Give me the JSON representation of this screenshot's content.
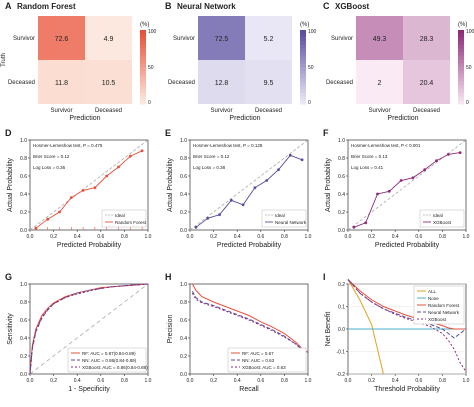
{
  "colors": {
    "rf": "#e8503a",
    "nn": "#5a4fa0",
    "xgb": "#8e2a7a",
    "ideal": "#aaaaaa",
    "all": "#e6a020",
    "none": "#49b0c8"
  },
  "chart_data": [
    {
      "panel": "A",
      "type": "heatmap",
      "title": "Random Forest",
      "xlabel": "Prediction",
      "ylabel": "Truth",
      "rows": [
        "Survivor",
        "Deceased"
      ],
      "cols": [
        "Survivor",
        "Deceased"
      ],
      "values": [
        [
          72.6,
          4.9
        ],
        [
          11.8,
          10.5
        ]
      ],
      "labels": [
        [
          "72.6",
          "4.9"
        ],
        [
          "11.8",
          "10.5"
        ]
      ],
      "colorbar": {
        "unit": "(%)",
        "ticks": [
          "100",
          "50",
          "0"
        ],
        "low": "#fdf0e6",
        "high": "#e8503a"
      }
    },
    {
      "panel": "B",
      "type": "heatmap",
      "title": "Neural Network",
      "xlabel": "Prediction",
      "ylabel": "",
      "rows": [
        "Survivor",
        "Deceased"
      ],
      "cols": [
        "Survivor",
        "Deceased"
      ],
      "values": [
        [
          72.5,
          5.2
        ],
        [
          12.8,
          9.5
        ]
      ],
      "labels": [
        [
          "72.5",
          "5.2"
        ],
        [
          "12.8",
          "9.5"
        ]
      ],
      "colorbar": {
        "unit": "(%)",
        "ticks": [
          "100",
          "50",
          "0"
        ],
        "low": "#f1effa",
        "high": "#5a4fa0"
      }
    },
    {
      "panel": "C",
      "type": "heatmap",
      "title": "XGBoost",
      "xlabel": "Prediction",
      "ylabel": "",
      "rows": [
        "Survivor",
        "Deceased"
      ],
      "cols": [
        "Survivor",
        "Deceased"
      ],
      "values": [
        [
          49.3,
          28.3
        ],
        [
          2,
          20.4
        ]
      ],
      "labels": [
        [
          "49.3",
          "28.3"
        ],
        [
          "2",
          "20.4"
        ]
      ],
      "colorbar": {
        "unit": "(%)",
        "ticks": [
          "100",
          "50",
          "0"
        ],
        "low": "#fbeef5",
        "high": "#8e2a7a"
      }
    },
    {
      "panel": "D",
      "type": "line",
      "xlabel": "Predicted Probability",
      "ylabel": "Actual Probability",
      "xlim": [
        0,
        1
      ],
      "ylim": [
        0,
        1
      ],
      "xticks": [
        "0.0",
        "0.2",
        "0.4",
        "0.6",
        "0.8",
        "1.0"
      ],
      "yticks": [
        "0.0",
        "0.2",
        "0.4",
        "0.6",
        "0.8",
        "1.0"
      ],
      "annotations": [
        "Hosmer-Lemeshow test, P = 0.475",
        "Brier Score = 0.12",
        "Log Loss = 0.36"
      ],
      "legend": [
        "Ideal",
        "Random Forest"
      ],
      "series_x": [
        0.05,
        0.15,
        0.25,
        0.35,
        0.45,
        0.55,
        0.65,
        0.75,
        0.85,
        0.95
      ],
      "series_y": [
        0.02,
        0.12,
        0.2,
        0.36,
        0.44,
        0.47,
        0.6,
        0.7,
        0.82,
        0.88
      ],
      "color_key": "rf",
      "marker": "dot",
      "rug": true
    },
    {
      "panel": "E",
      "type": "line",
      "xlabel": "Predicted Probability",
      "ylabel": "Actual Probability",
      "xlim": [
        0,
        1
      ],
      "ylim": [
        0,
        1
      ],
      "xticks": [
        "0.0",
        "0.2",
        "0.4",
        "0.6",
        "0.8",
        "1.0"
      ],
      "yticks": [
        "0.0",
        "0.2",
        "0.4",
        "0.6",
        "0.8",
        "1.0"
      ],
      "annotations": [
        "Hosmer-Lemeshow test, P = 0.128",
        "Brier Score = 0.12",
        "Log Loss = 0.38"
      ],
      "legend": [
        "Ideal",
        "Neural Network"
      ],
      "series_x": [
        0.05,
        0.15,
        0.25,
        0.35,
        0.45,
        0.55,
        0.65,
        0.75,
        0.85,
        0.95
      ],
      "series_y": [
        0.03,
        0.13,
        0.17,
        0.33,
        0.28,
        0.47,
        0.55,
        0.67,
        0.83,
        0.78
      ],
      "color_key": "nn",
      "marker": "dot",
      "rug": false
    },
    {
      "panel": "F",
      "type": "line",
      "xlabel": "Predicted Probability",
      "ylabel": "Actual Probability",
      "xlim": [
        0,
        1
      ],
      "ylim": [
        0,
        1
      ],
      "xticks": [
        "0.0",
        "0.2",
        "0.4",
        "0.6",
        "0.8",
        "1.0"
      ],
      "yticks": [
        "0.0",
        "0.2",
        "0.4",
        "0.6",
        "0.8",
        "1.0"
      ],
      "annotations": [
        "Hosmer-Lemeshow test, P < 0.001",
        "Brier Score = 0.13",
        "Log Loss = 0.41"
      ],
      "legend": [
        "Ideal",
        "XGBoost"
      ],
      "series_x": [
        0.05,
        0.15,
        0.25,
        0.35,
        0.45,
        0.55,
        0.65,
        0.75,
        0.85,
        0.95
      ],
      "series_y": [
        0.03,
        0.08,
        0.4,
        0.43,
        0.55,
        0.58,
        0.67,
        0.77,
        0.84,
        0.86
      ],
      "color_key": "xgb",
      "marker": "dot",
      "rug": false
    },
    {
      "panel": "G",
      "type": "line",
      "xlabel": "1 - Specificity",
      "ylabel": "Sensitivity",
      "xlim": [
        0,
        1
      ],
      "ylim": [
        0,
        1
      ],
      "xticks": [
        "0.0",
        "0.2",
        "0.4",
        "0.6",
        "0.8",
        "1.0"
      ],
      "yticks": [
        "0.0",
        "0.2",
        "0.4",
        "0.6",
        "0.8",
        "1.0"
      ],
      "legend": [
        "RF: AUC = 0.87(0.84-0.89)",
        "NN: AUC = 0.86(0.84-0.89)",
        "XGBoost: AUC = 0.86(0.84-0.88)"
      ],
      "diagonal": true,
      "series": [
        {
          "color_key": "rf",
          "dash": "",
          "x": [
            0,
            0.02,
            0.05,
            0.1,
            0.15,
            0.2,
            0.3,
            0.4,
            0.5,
            0.6,
            0.7,
            0.8,
            0.9,
            1.0
          ],
          "y": [
            0,
            0.32,
            0.5,
            0.65,
            0.73,
            0.79,
            0.86,
            0.9,
            0.93,
            0.96,
            0.97,
            0.98,
            0.99,
            1.0
          ]
        },
        {
          "color_key": "nn",
          "dash": "4,2",
          "x": [
            0,
            0.02,
            0.05,
            0.1,
            0.15,
            0.2,
            0.3,
            0.4,
            0.5,
            0.6,
            0.7,
            0.8,
            0.9,
            1.0
          ],
          "y": [
            0,
            0.28,
            0.47,
            0.62,
            0.71,
            0.78,
            0.85,
            0.9,
            0.93,
            0.95,
            0.97,
            0.98,
            0.99,
            1.0
          ]
        },
        {
          "color_key": "xgb",
          "dash": "2,2",
          "x": [
            0,
            0.02,
            0.05,
            0.1,
            0.15,
            0.2,
            0.3,
            0.4,
            0.5,
            0.6,
            0.7,
            0.8,
            0.9,
            1.0
          ],
          "y": [
            0,
            0.3,
            0.48,
            0.63,
            0.72,
            0.78,
            0.85,
            0.89,
            0.92,
            0.95,
            0.97,
            0.98,
            0.99,
            1.0
          ]
        }
      ]
    },
    {
      "panel": "H",
      "type": "line",
      "xlabel": "Recall",
      "ylabel": "Precision",
      "xlim": [
        0,
        1
      ],
      "ylim": [
        0,
        1
      ],
      "xticks": [
        "0.0",
        "0.2",
        "0.4",
        "0.6",
        "0.8",
        "1.0"
      ],
      "yticks": [
        "0.0",
        "0.2",
        "0.4",
        "0.6",
        "0.8",
        "1.0"
      ],
      "legend": [
        "RF: AUC = 0.67",
        "NN: AUC = 0.63",
        "XGBoost: AUC = 0.63"
      ],
      "diagonal": false,
      "series": [
        {
          "color_key": "rf",
          "dash": "",
          "x": [
            0.02,
            0.05,
            0.1,
            0.2,
            0.3,
            0.4,
            0.5,
            0.6,
            0.7,
            0.8,
            0.9,
            0.95,
            1.0
          ],
          "y": [
            1.0,
            0.93,
            0.86,
            0.8,
            0.75,
            0.7,
            0.65,
            0.58,
            0.52,
            0.45,
            0.35,
            0.28,
            0.24
          ]
        },
        {
          "color_key": "nn",
          "dash": "4,2",
          "x": [
            0.02,
            0.05,
            0.1,
            0.2,
            0.3,
            0.4,
            0.5,
            0.6,
            0.7,
            0.8,
            0.9,
            0.95,
            1.0
          ],
          "y": [
            0.92,
            0.85,
            0.8,
            0.76,
            0.71,
            0.66,
            0.61,
            0.55,
            0.49,
            0.42,
            0.33,
            0.27,
            0.24
          ]
        },
        {
          "color_key": "xgb",
          "dash": "2,2",
          "x": [
            0.02,
            0.05,
            0.1,
            0.2,
            0.3,
            0.4,
            0.5,
            0.6,
            0.7,
            0.8,
            0.9,
            0.95,
            1.0
          ],
          "y": [
            0.9,
            0.83,
            0.79,
            0.75,
            0.7,
            0.65,
            0.6,
            0.54,
            0.48,
            0.41,
            0.33,
            0.27,
            0.24
          ]
        }
      ]
    },
    {
      "panel": "I",
      "type": "line",
      "xlabel": "Threshold Probability",
      "ylabel": "Net Benefit",
      "xlim": [
        0,
        1
      ],
      "ylim": [
        -0.2,
        0.2
      ],
      "xticks": [
        "0.0",
        "0.2",
        "0.4",
        "0.6",
        "0.8",
        "1.0"
      ],
      "yticks": [
        "-0.2",
        "-0.1",
        "0.0",
        "0.1",
        "0.2"
      ],
      "legend": [
        "ALL",
        "None",
        "Random Forest",
        "Neural Network",
        "XGBoost"
      ],
      "diagonal": false,
      "series": [
        {
          "color_key": "all",
          "dash": "",
          "x": [
            0,
            0.1,
            0.2,
            0.3
          ],
          "y": [
            0.22,
            0.13,
            0.02,
            -0.2
          ]
        },
        {
          "color_key": "none",
          "dash": "",
          "x": [
            0,
            1.0
          ],
          "y": [
            0,
            0
          ]
        },
        {
          "color_key": "rf",
          "dash": "",
          "x": [
            0,
            0.1,
            0.2,
            0.3,
            0.4,
            0.5,
            0.6,
            0.7,
            0.8,
            0.85,
            0.9,
            1.0
          ],
          "y": [
            0.22,
            0.17,
            0.13,
            0.1,
            0.08,
            0.06,
            0.045,
            0.03,
            0.015,
            0.005,
            0,
            0
          ]
        },
        {
          "color_key": "nn",
          "dash": "4,2",
          "x": [
            0,
            0.1,
            0.2,
            0.3,
            0.4,
            0.5,
            0.6,
            0.7,
            0.8,
            0.85,
            0.9,
            0.95,
            1.0
          ],
          "y": [
            0.22,
            0.16,
            0.12,
            0.09,
            0.07,
            0.05,
            0.035,
            0.02,
            0.0,
            -0.02,
            -0.04,
            -0.02,
            0
          ]
        },
        {
          "color_key": "xgb",
          "dash": "2,2",
          "x": [
            0,
            0.1,
            0.2,
            0.3,
            0.4,
            0.5,
            0.6,
            0.7,
            0.8,
            0.85,
            0.9,
            0.95,
            1.0
          ],
          "y": [
            0.22,
            0.16,
            0.12,
            0.09,
            0.065,
            0.045,
            0.03,
            0.01,
            -0.02,
            -0.05,
            -0.09,
            -0.15,
            -0.19
          ]
        }
      ]
    }
  ]
}
